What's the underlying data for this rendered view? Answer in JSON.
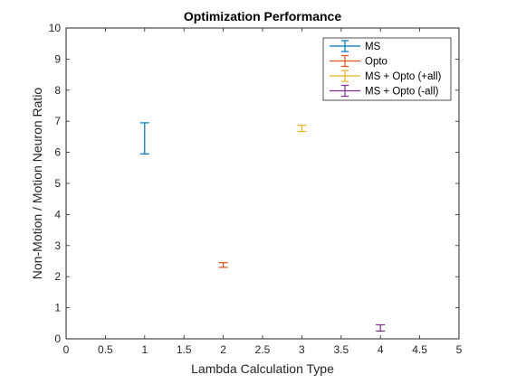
{
  "chart_data": {
    "type": "errorbar",
    "title": "Optimization Performance",
    "xlabel": "Lambda Calculation Type",
    "ylabel": "Non-Motion / Motion Neuron Ratio",
    "xlim": [
      0,
      5
    ],
    "ylim": [
      0,
      10
    ],
    "xticks": [
      0,
      0.5,
      1,
      1.5,
      2,
      2.5,
      3,
      3.5,
      4,
      4.5,
      5
    ],
    "xtick_labels": [
      "0",
      "0.5",
      "1",
      "1.5",
      "2",
      "2.5",
      "3",
      "3.5",
      "4",
      "4.5",
      "5"
    ],
    "yticks": [
      0,
      1,
      2,
      3,
      4,
      5,
      6,
      7,
      8,
      9,
      10
    ],
    "ytick_labels": [
      "0",
      "1",
      "2",
      "3",
      "4",
      "5",
      "6",
      "7",
      "8",
      "9",
      "10"
    ],
    "grid": false,
    "legend_position": "top-right",
    "series": [
      {
        "name": "MS",
        "color": "#0072BD",
        "x": 1,
        "y": 6.45,
        "lower": 5.95,
        "upper": 6.95
      },
      {
        "name": "Opto",
        "color": "#D95319",
        "x": 2,
        "y": 2.37,
        "lower": 2.3,
        "upper": 2.45
      },
      {
        "name": "MS + Opto (+all)",
        "color": "#EDB120",
        "x": 3,
        "y": 6.77,
        "lower": 6.67,
        "upper": 6.87
      },
      {
        "name": "MS + Opto (-all)",
        "color": "#7E2F8E",
        "x": 4,
        "y": 0.35,
        "lower": 0.25,
        "upper": 0.45
      }
    ]
  }
}
